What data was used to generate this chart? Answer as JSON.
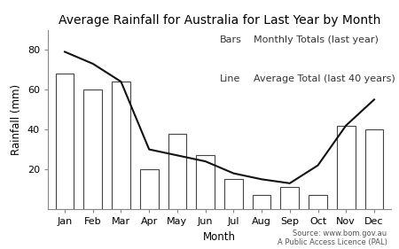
{
  "title": "Average Rainfall for Australia for Last Year by Month",
  "xlabel": "Month",
  "ylabel": "Rainfall (mm)",
  "months": [
    "Jan",
    "Feb",
    "Mar",
    "Apr",
    "May",
    "Jun",
    "Jul",
    "Aug",
    "Sep",
    "Oct",
    "Nov",
    "Dec"
  ],
  "bar_values": [
    68,
    60,
    64,
    20,
    38,
    27,
    15,
    7,
    11,
    7,
    42,
    40
  ],
  "line_values": [
    79,
    73,
    64,
    30,
    27,
    24,
    18,
    15,
    13,
    22,
    42,
    55
  ],
  "bar_color": "#ffffff",
  "bar_edgecolor": "#444444",
  "line_color": "#111111",
  "ylim": [
    0,
    90
  ],
  "yticks": [
    20,
    40,
    60,
    80
  ],
  "background_color": "#ffffff",
  "legend_prefix_bars": "Bars",
  "legend_prefix_line": "Line",
  "legend_bars_label": "Monthly Totals (last year)",
  "legend_line_label": "Average Total (last 40 years)",
  "source_text": "Source: www.bom.gov.au\nA Public Access Licence (PAL)",
  "title_fontsize": 10,
  "axis_label_fontsize": 8.5,
  "tick_fontsize": 8,
  "legend_fontsize": 8,
  "source_fontsize": 6
}
